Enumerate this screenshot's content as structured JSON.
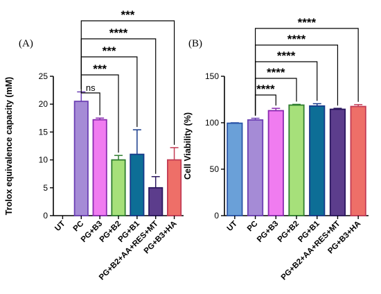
{
  "chart_data": [
    {
      "type": "bar",
      "panel_label": "(A)",
      "title": "",
      "xlabel": "",
      "ylabel": "Trolox equivalence capacity (mM)",
      "ylim": [
        0,
        25
      ],
      "yticks": [
        0,
        5,
        10,
        15,
        20,
        25
      ],
      "categories": [
        "UT",
        "PC",
        "PG+B3",
        "PG+B2",
        "PG+B1",
        "PG+B2+AA+RES+MT",
        "PG+B3+HA"
      ],
      "values": [
        0,
        20.5,
        17.2,
        10.0,
        11.0,
        5.0,
        10.0
      ],
      "errors": [
        0,
        1.7,
        0.3,
        0.8,
        4.4,
        2.0,
        2.2
      ],
      "fill_colors": [
        "#6aa0d8",
        "#a58bd6",
        "#f07cf0",
        "#a6e07a",
        "#0d6e96",
        "#5c3d8c",
        "#ee6f68"
      ],
      "edge_colors": [
        "#2a55a8",
        "#6b3fb3",
        "#8a2ab0",
        "#2f7d2f",
        "#173a8a",
        "#2b175e",
        "#c23c55"
      ],
      "comparisons": [
        {
          "from": "PC",
          "to": "PG+B3",
          "label": "ns"
        },
        {
          "from": "PC",
          "to": "PG+B2",
          "label": "***"
        },
        {
          "from": "PC",
          "to": "PG+B1",
          "label": "***"
        },
        {
          "from": "PC",
          "to": "PG+B2+AA+RES+MT",
          "label": "****"
        },
        {
          "from": "PC",
          "to": "PG+B3+HA",
          "label": "***"
        }
      ]
    },
    {
      "type": "bar",
      "panel_label": "(B)",
      "title": "",
      "xlabel": "",
      "ylabel": "Cell Viability (%)",
      "ylim": [
        0,
        150
      ],
      "yticks": [
        0,
        50,
        100,
        150
      ],
      "categories": [
        "UT",
        "PC",
        "PG+B3",
        "PG+B2",
        "PG+B1",
        "PG+B2+AA+RES+MT",
        "PG+B3+HA"
      ],
      "values": [
        99.5,
        103,
        113,
        119,
        118,
        114.5,
        117.5
      ],
      "errors": [
        0.5,
        1.8,
        2.5,
        0.8,
        2.5,
        1.0,
        2.0
      ],
      "fill_colors": [
        "#6aa0d8",
        "#a58bd6",
        "#f07cf0",
        "#a6e07a",
        "#0d6e96",
        "#5c3d8c",
        "#ee6f68"
      ],
      "edge_colors": [
        "#2a55a8",
        "#6b3fb3",
        "#8a2ab0",
        "#2f7d2f",
        "#173a8a",
        "#2b175e",
        "#c23c55"
      ],
      "comparisons": [
        {
          "from": "PC",
          "to": "PG+B3",
          "label": "****"
        },
        {
          "from": "PC",
          "to": "PG+B2",
          "label": "****"
        },
        {
          "from": "PC",
          "to": "PG+B1",
          "label": "****"
        },
        {
          "from": "PC",
          "to": "PG+B2+AA+RES+MT",
          "label": "****"
        },
        {
          "from": "PC",
          "to": "PG+B3+HA",
          "label": "****"
        }
      ]
    }
  ]
}
